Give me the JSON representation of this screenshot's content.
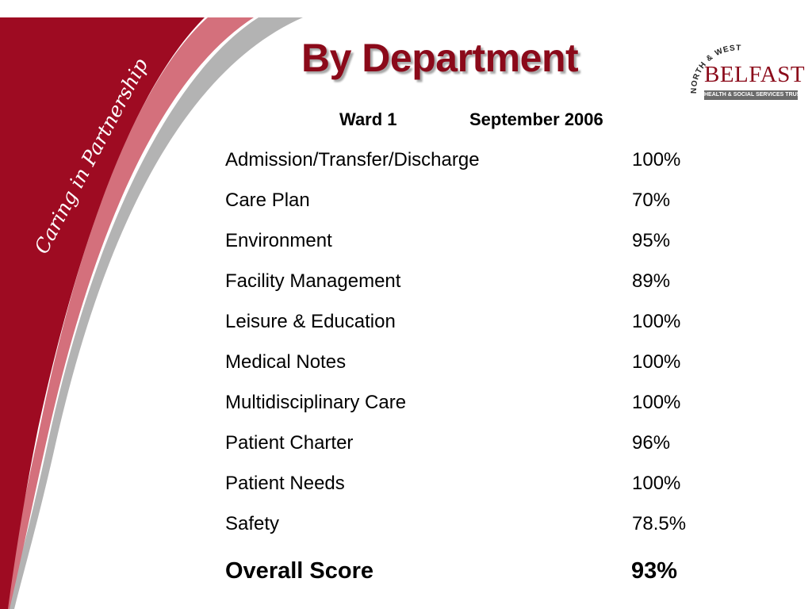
{
  "slide": {
    "title": "By Department"
  },
  "side_banner": {
    "text": "Caring in Partnership"
  },
  "logo": {
    "arc_text": "NORTH & WEST",
    "name": "BELFAST",
    "subtitle": "HEALTH & SOCIAL SERVICES TRUST"
  },
  "report": {
    "ward": "Ward 1",
    "period": "September 2006",
    "rows": [
      {
        "label": "Admission/Transfer/Discharge",
        "value": "100%"
      },
      {
        "label": "Care Plan",
        "value": "70%"
      },
      {
        "label": "Environment",
        "value": "95%"
      },
      {
        "label": "Facility Management",
        "value": "89%"
      },
      {
        "label": "Leisure & Education",
        "value": "100%"
      },
      {
        "label": "Medical Notes",
        "value": "100%"
      },
      {
        "label": "Multidisciplinary Care",
        "value": "100%"
      },
      {
        "label": "Patient Charter",
        "value": "96%"
      },
      {
        "label": "Patient Needs",
        "value": "100%"
      },
      {
        "label": "Safety",
        "value": "78.5%"
      }
    ],
    "overall": {
      "label": "Overall Score",
      "value": "93%"
    }
  },
  "colors": {
    "brand_red": "#8b0a1a",
    "swoosh_pink": "#d4707c",
    "swoosh_grey": "#b3b3b3",
    "logo_bar": "#6b6b6b"
  }
}
